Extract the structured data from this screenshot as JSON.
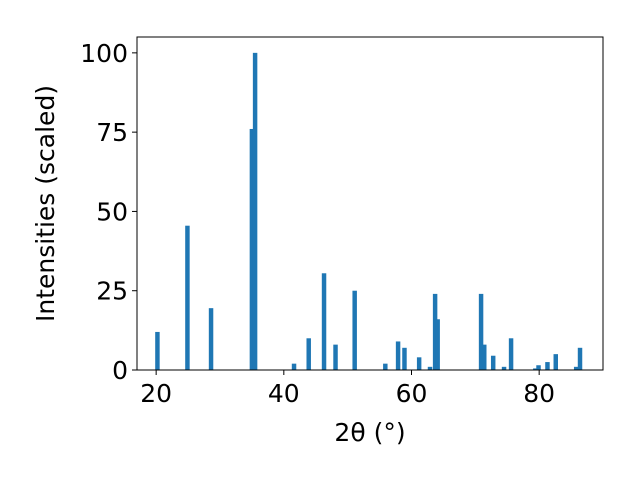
{
  "chart_data": {
    "type": "bar",
    "xlabel": "2θ (°)",
    "ylabel": "Intensities (scaled)",
    "xlim": [
      17,
      90
    ],
    "ylim": [
      0,
      105
    ],
    "grid": false,
    "xticks": [
      20,
      40,
      60,
      80
    ],
    "yticks": [
      0,
      25,
      50,
      75,
      100
    ],
    "bar_width": 0.7,
    "color": "#1f77b4",
    "x": [
      20.2,
      24.9,
      28.6,
      35.0,
      35.5,
      41.6,
      43.9,
      46.3,
      48.1,
      51.1,
      55.9,
      57.9,
      58.9,
      61.2,
      62.9,
      63.7,
      64.1,
      70.9,
      71.4,
      72.8,
      74.5,
      75.6,
      79.4,
      79.9,
      81.3,
      82.6,
      85.8,
      86.4
    ],
    "y": [
      12,
      45.5,
      19.5,
      76,
      100,
      2,
      10,
      30.5,
      8,
      25,
      2,
      9,
      7,
      4,
      1,
      24,
      16,
      24,
      8,
      4.5,
      1,
      10,
      0.5,
      1.5,
      2.5,
      5,
      1,
      7
    ]
  }
}
